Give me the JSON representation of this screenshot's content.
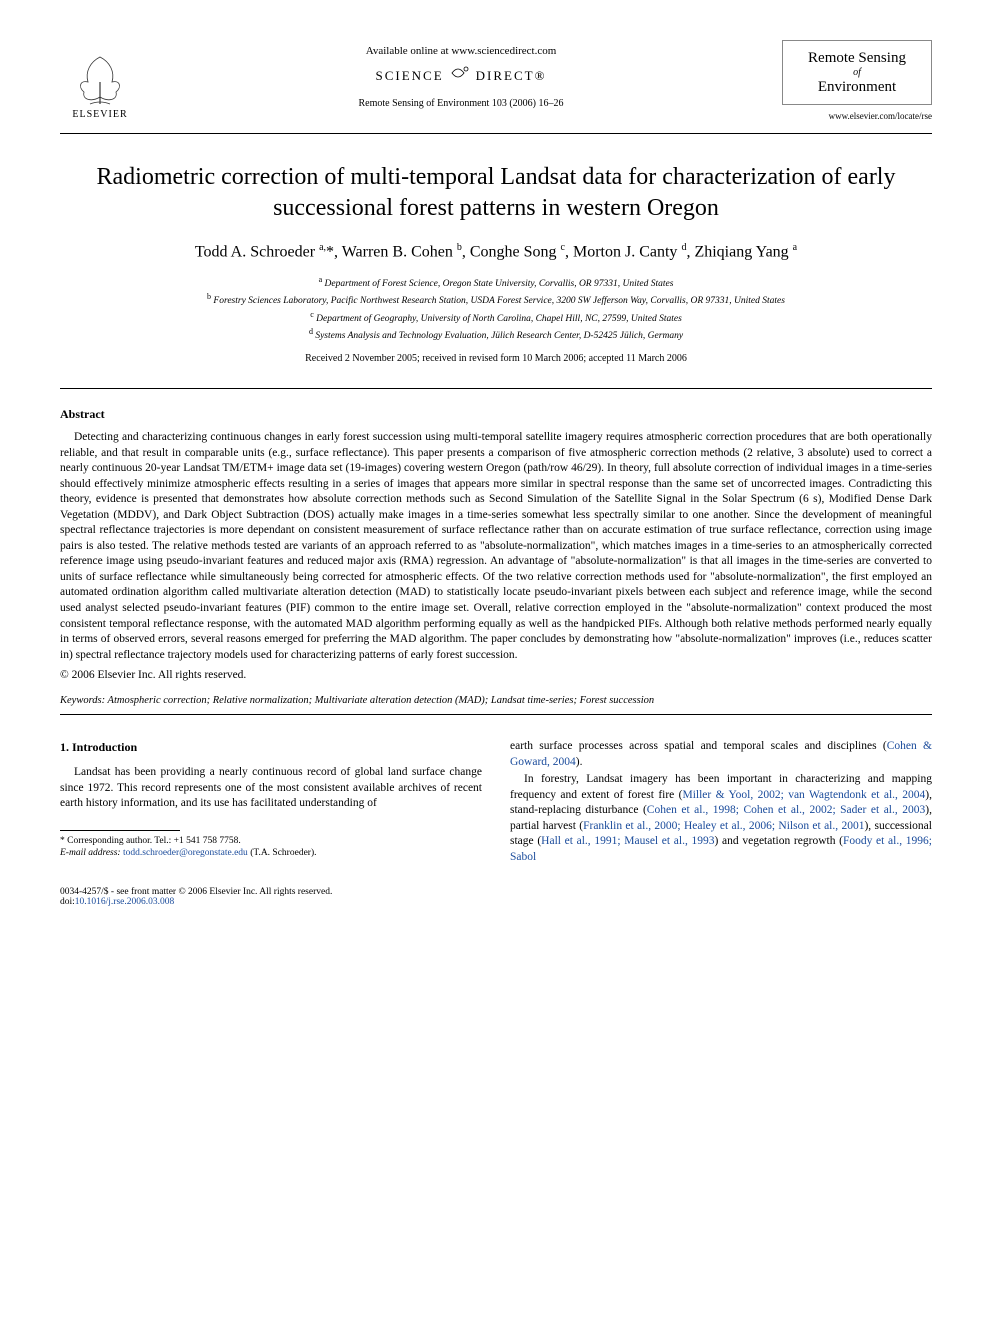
{
  "header": {
    "publisher_label": "ELSEVIER",
    "available_online": "Available online at www.sciencedirect.com",
    "sd_left": "SCIENCE",
    "sd_right": "DIRECT®",
    "citation": "Remote Sensing of Environment 103 (2006) 16–26",
    "journal_title_line1": "Remote Sensing",
    "journal_of": "of",
    "journal_title_line2": "Environment",
    "journal_url": "www.elsevier.com/locate/rse"
  },
  "article": {
    "title": "Radiometric correction of multi-temporal Landsat data for characterization of early successional forest patterns in western Oregon",
    "authors_html": "Todd A. Schroeder <sup>a,</sup>*, Warren B. Cohen <sup>b</sup>, Conghe Song <sup>c</sup>, Morton J. Canty <sup>d</sup>, Zhiqiang Yang <sup>a</sup>",
    "affiliations": [
      "<sup>a</sup> Department of Forest Science, Oregon State University, Corvallis, OR 97331, United States",
      "<sup>b</sup> Forestry Sciences Laboratory, Pacific Northwest Research Station, USDA Forest Service, 3200 SW Jefferson Way, Corvallis, OR 97331, United States",
      "<sup>c</sup> Department of Geography, University of North Carolina, Chapel Hill, NC, 27599, United States",
      "<sup>d</sup> Systems Analysis and Technology Evaluation, Jülich Research Center, D-52425 Jülich, Germany"
    ],
    "dates": "Received 2 November 2005; received in revised form 10 March 2006; accepted 11 March 2006"
  },
  "abstract": {
    "heading": "Abstract",
    "body": "Detecting and characterizing continuous changes in early forest succession using multi-temporal satellite imagery requires atmospheric correction procedures that are both operationally reliable, and that result in comparable units (e.g., surface reflectance). This paper presents a comparison of five atmospheric correction methods (2 relative, 3 absolute) used to correct a nearly continuous 20-year Landsat TM/ETM+ image data set (19-images) covering western Oregon (path/row 46/29). In theory, full absolute correction of individual images in a time-series should effectively minimize atmospheric effects resulting in a series of images that appears more similar in spectral response than the same set of uncorrected images. Contradicting this theory, evidence is presented that demonstrates how absolute correction methods such as Second Simulation of the Satellite Signal in the Solar Spectrum (6 s), Modified Dense Dark Vegetation (MDDV), and Dark Object Subtraction (DOS) actually make images in a time-series somewhat less spectrally similar to one another. Since the development of meaningful spectral reflectance trajectories is more dependant on consistent measurement of surface reflectance rather than on accurate estimation of true surface reflectance, correction using image pairs is also tested. The relative methods tested are variants of an approach referred to as \"absolute-normalization\", which matches images in a time-series to an atmospherically corrected reference image using pseudo-invariant features and reduced major axis (RMA) regression. An advantage of \"absolute-normalization\" is that all images in the time-series are converted to units of surface reflectance while simultaneously being corrected for atmospheric effects. Of the two relative correction methods used for \"absolute-normalization\", the first employed an automated ordination algorithm called multivariate alteration detection (MAD) to statistically locate pseudo-invariant pixels between each subject and reference image, while the second used analyst selected pseudo-invariant features (PIF) common to the entire image set. Overall, relative correction employed in the \"absolute-normalization\" context produced the most consistent temporal reflectance response, with the automated MAD algorithm performing equally as well as the handpicked PIFs. Although both relative methods performed nearly equally in terms of observed errors, several reasons emerged for preferring the MAD algorithm. The paper concludes by demonstrating how \"absolute-normalization\" improves (i.e., reduces scatter in) spectral reflectance trajectory models used for characterizing patterns of early forest succession.",
    "copyright": "© 2006 Elsevier Inc. All rights reserved."
  },
  "keywords": {
    "label": "Keywords:",
    "list": "Atmospheric correction; Relative normalization; Multivariate alteration detection (MAD); Landsat time-series; Forest succession"
  },
  "body": {
    "section_number": "1.",
    "section_title": "Introduction",
    "col1_p1": "Landsat has been providing a nearly continuous record of global land surface change since 1972. This record represents one of the most consistent available archives of recent earth history information, and its use has facilitated understanding of",
    "col2_p1_pre": "earth surface processes across spatial and temporal scales and disciplines (",
    "col2_p1_link": "Cohen & Goward, 2004",
    "col2_p1_post": ").",
    "col2_p2_pre": "In forestry, Landsat imagery has been important in characterizing and mapping frequency and extent of forest fire (",
    "col2_p2_l1": "Miller & Yool, 2002; van Wagtendonk et al., 2004",
    "col2_p2_mid1": "), stand-replacing disturbance (",
    "col2_p2_l2": "Cohen et al., 1998; Cohen et al., 2002; Sader et al., 2003",
    "col2_p2_mid2": "), partial harvest (",
    "col2_p2_l3": "Franklin et al., 2000; Healey et al., 2006; Nilson et al., 2001",
    "col2_p2_mid3": "), successional stage (",
    "col2_p2_l4": "Hall et al., 1991; Mausel et al., 1993",
    "col2_p2_mid4": ") and vegetation regrowth (",
    "col2_p2_l5": "Foody et al., 1996; Sabol"
  },
  "footnotes": {
    "corr": "* Corresponding author. Tel.: +1 541 758 7758.",
    "email_label": "E-mail address:",
    "email": "todd.schroeder@oregonstate.edu",
    "email_post": "(T.A. Schroeder)."
  },
  "footer": {
    "left_line1": "0034-4257/$ - see front matter © 2006 Elsevier Inc. All rights reserved.",
    "doi_label": "doi:",
    "doi": "10.1016/j.rse.2006.03.008"
  },
  "colors": {
    "link": "#1a4b9b",
    "text": "#000000",
    "background": "#ffffff",
    "rule": "#000000"
  },
  "typography": {
    "title_fontsize_pt": 18,
    "authors_fontsize_pt": 12,
    "body_fontsize_pt": 9,
    "abstract_fontsize_pt": 9,
    "font_family": "Times New Roman"
  }
}
